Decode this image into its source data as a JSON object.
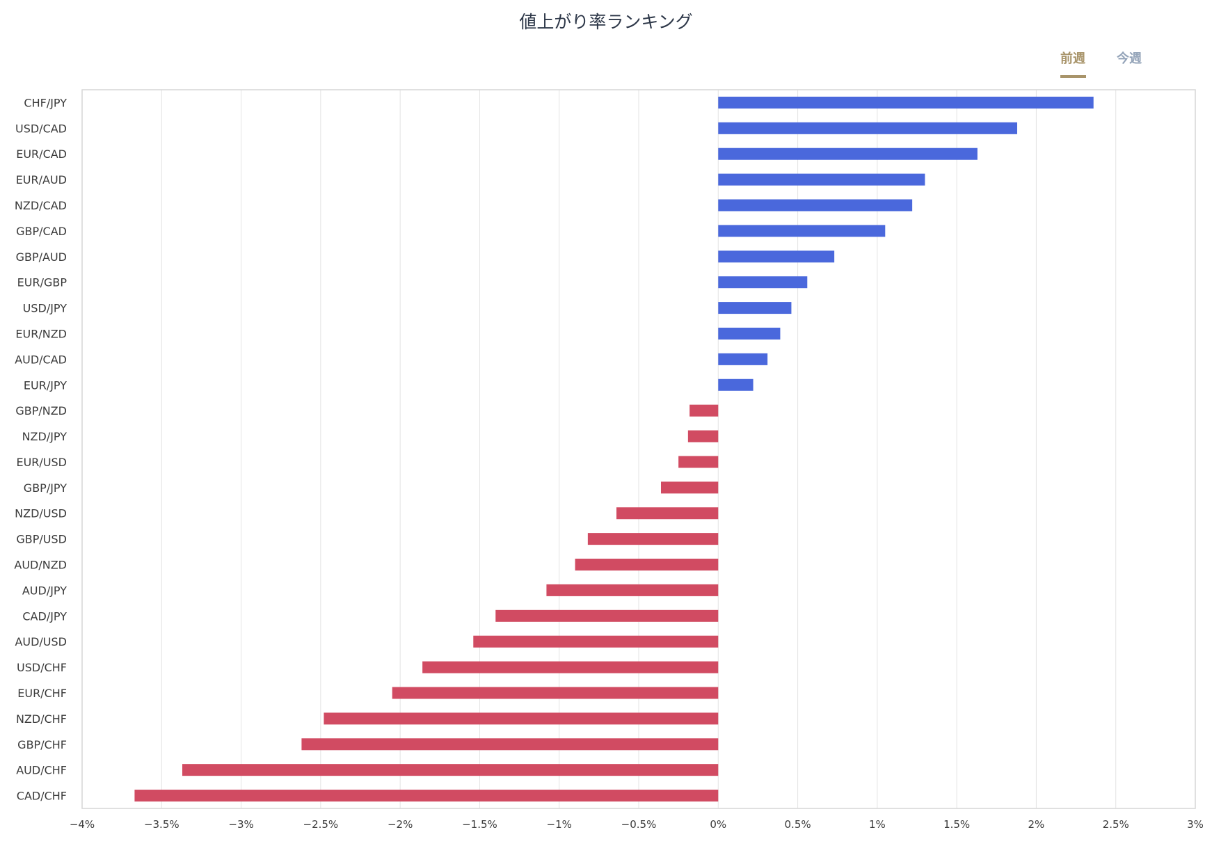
{
  "title": "値上がり率ランキング",
  "tabs": {
    "previous_week": "前週",
    "this_week": "今週",
    "active": "previous_week"
  },
  "colors": {
    "positive": "#4a68dc",
    "negative": "#d14b62",
    "grid": "#e3e3e3",
    "frame": "#d6d6d6",
    "active_tab": "#a8946a",
    "inactive_tab": "#93a3b8"
  },
  "chart_data": {
    "type": "bar",
    "orientation": "horizontal",
    "title": "値上がり率ランキング",
    "xlabel": "",
    "ylabel": "",
    "xlim": [
      -4,
      3
    ],
    "xticks": [
      -4,
      -3.5,
      -3,
      -2.5,
      -2,
      -1.5,
      -1,
      -0.5,
      0,
      0.5,
      1,
      1.5,
      2,
      2.5,
      3
    ],
    "xtick_labels": [
      "−4%",
      "−3.5%",
      "−3%",
      "−2.5%",
      "−2%",
      "−1.5%",
      "−1%",
      "−0.5%",
      "0%",
      "0.5%",
      "1%",
      "1.5%",
      "2%",
      "2.5%",
      "3%"
    ],
    "grid": true,
    "categories": [
      "CHF/JPY",
      "USD/CAD",
      "EUR/CAD",
      "EUR/AUD",
      "NZD/CAD",
      "GBP/CAD",
      "GBP/AUD",
      "EUR/GBP",
      "USD/JPY",
      "EUR/NZD",
      "AUD/CAD",
      "EUR/JPY",
      "GBP/NZD",
      "NZD/JPY",
      "EUR/USD",
      "GBP/JPY",
      "NZD/USD",
      "GBP/USD",
      "AUD/NZD",
      "AUD/JPY",
      "CAD/JPY",
      "AUD/USD",
      "USD/CHF",
      "EUR/CHF",
      "NZD/CHF",
      "GBP/CHF",
      "AUD/CHF",
      "CAD/CHF"
    ],
    "values": [
      2.36,
      1.88,
      1.63,
      1.3,
      1.22,
      1.05,
      0.73,
      0.56,
      0.46,
      0.39,
      0.31,
      0.22,
      -0.18,
      -0.19,
      -0.25,
      -0.36,
      -0.64,
      -0.82,
      -0.9,
      -1.08,
      -1.4,
      -1.54,
      -1.86,
      -2.05,
      -2.48,
      -2.62,
      -3.37,
      -3.67
    ]
  }
}
